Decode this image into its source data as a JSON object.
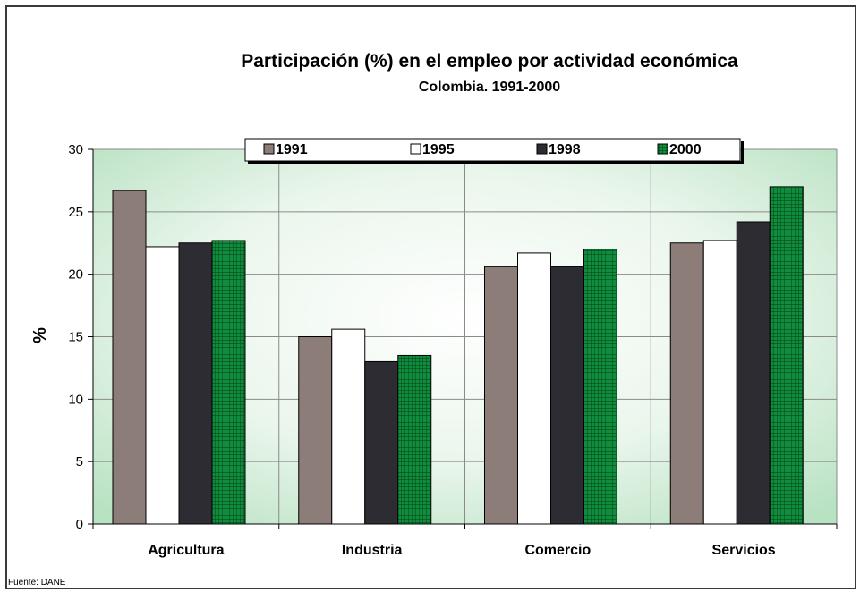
{
  "chart_data": {
    "type": "bar",
    "title": "Participación (%) en el empleo por actividad económica",
    "subtitle": "Colombia.  1991-2000",
    "xlabel": "",
    "ylabel": "%",
    "ylim": [
      0,
      30
    ],
    "yticks": [
      0,
      5,
      10,
      15,
      20,
      25,
      30
    ],
    "grid": true,
    "legend": "top-center",
    "categories": [
      "Agricultura",
      "Industria",
      "Comercio",
      "Servicios"
    ],
    "series": [
      {
        "name": "1991",
        "values": [
          26.7,
          15.0,
          20.6,
          22.5
        ],
        "color": "#8c7d78",
        "pattern": "solid"
      },
      {
        "name": "1995",
        "values": [
          22.2,
          15.6,
          21.7,
          22.7
        ],
        "color": "#ffffff",
        "pattern": "solid"
      },
      {
        "name": "1998",
        "values": [
          22.5,
          13.0,
          20.6,
          24.2
        ],
        "color": "#2e2c33",
        "pattern": "solid"
      },
      {
        "name": "2000",
        "values": [
          22.7,
          13.5,
          22.0,
          27.0
        ],
        "color": "#0f8c3c",
        "pattern": "grid"
      }
    ],
    "source": "Fuente: DANE"
  }
}
